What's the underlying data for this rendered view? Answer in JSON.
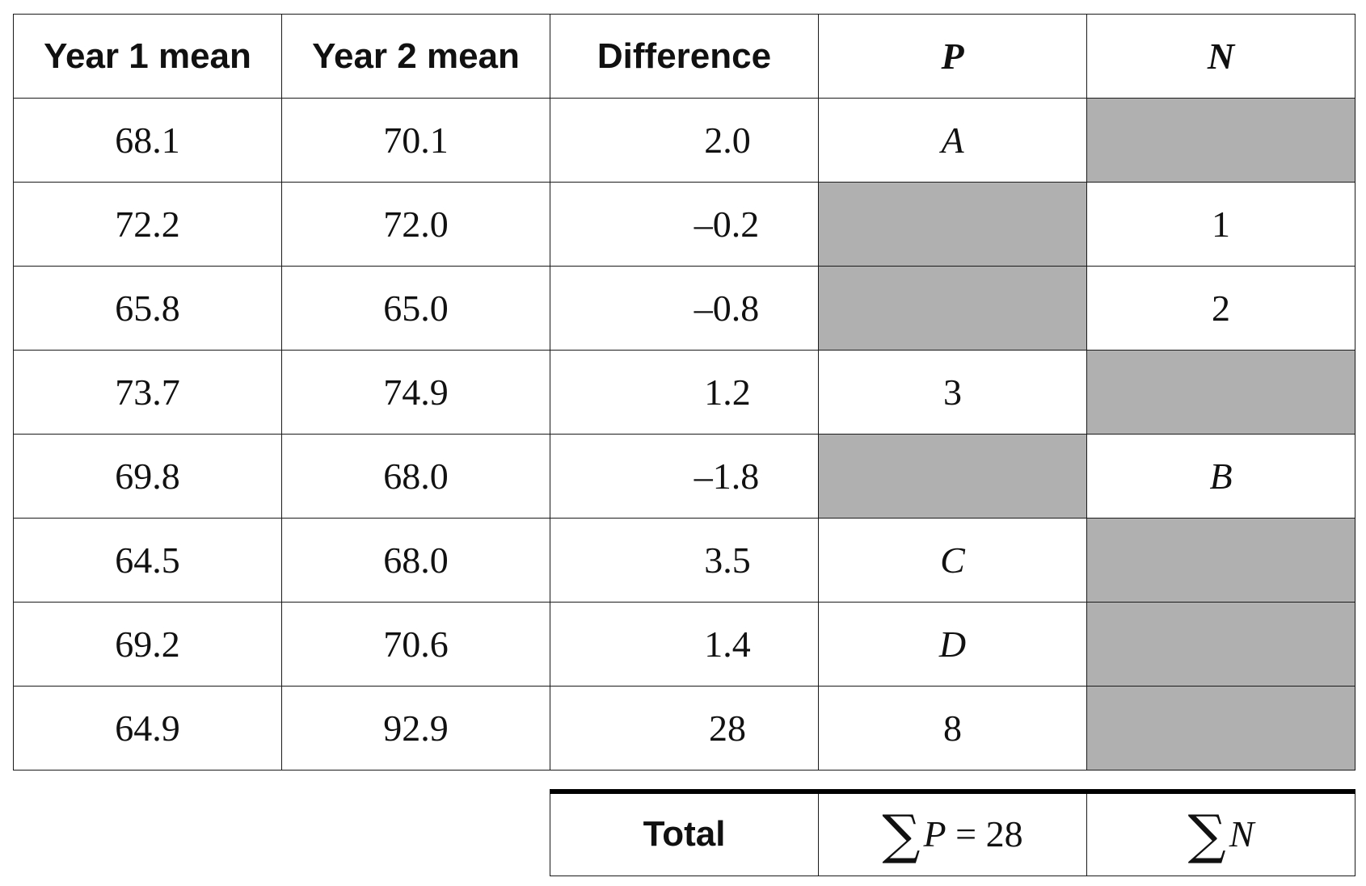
{
  "headers": [
    "Year 1 mean",
    "Year 2 mean",
    "Difference",
    "P",
    "N"
  ],
  "rows": [
    {
      "y1": "68.1",
      "y2": "70.1",
      "diff": "2.0",
      "p": "A",
      "n": ""
    },
    {
      "y1": "72.2",
      "y2": "72.0",
      "diff": "–0.2",
      "p": "",
      "n": "1"
    },
    {
      "y1": "65.8",
      "y2": "65.0",
      "diff": "–0.8",
      "p": "",
      "n": "2"
    },
    {
      "y1": "73.7",
      "y2": "74.9",
      "diff": "1.2",
      "p": "3",
      "n": ""
    },
    {
      "y1": "69.8",
      "y2": "68.0",
      "diff": "–1.8",
      "p": "",
      "n": "B"
    },
    {
      "y1": "64.5",
      "y2": "68.0",
      "diff": "3.5",
      "p": "C",
      "n": ""
    },
    {
      "y1": "69.2",
      "y2": "70.6",
      "diff": "1.4",
      "p": "D",
      "n": ""
    },
    {
      "y1": "64.9",
      "y2": "92.9",
      "diff": "28",
      "p": "8",
      "n": ""
    }
  ],
  "total": {
    "label": "Total",
    "sigma": "∑",
    "p_var": "P",
    "p_rest": " = 28",
    "n_var": "N"
  },
  "shading_color": "#b0b0b0"
}
